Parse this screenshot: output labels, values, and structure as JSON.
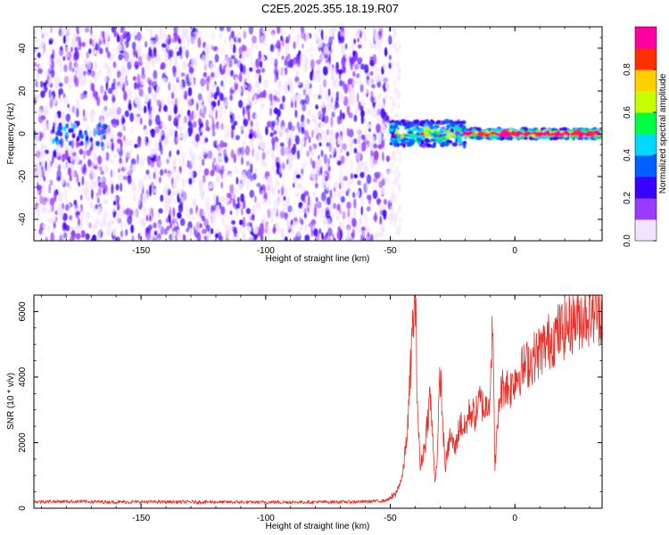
{
  "title": "C2E5.2025.355.18.19.R07",
  "chart_data": [
    {
      "type": "heatmap",
      "name": "spectrogram",
      "xlabel": "Height of straight line (km)",
      "ylabel": "Frequency (Hz)",
      "xlim": [
        -193,
        35
      ],
      "ylim": [
        -50,
        50
      ],
      "xticks": [
        -150,
        -100,
        -50,
        0
      ],
      "xtick_labels": [
        "-150",
        "-100",
        "-50",
        "0"
      ],
      "yticks": [
        -40,
        -20,
        0,
        20,
        40
      ],
      "ytick_labels": [
        "-40",
        "-20",
        "0",
        "20",
        "40"
      ],
      "noise_region_x": [
        -193,
        -50
      ],
      "signal_onset_km": -50,
      "carrier_frequency_hz": 0,
      "colorbar": {
        "label": "Normalized spectral amplitude",
        "range": [
          0,
          1
        ],
        "ticks": [
          0.0,
          0.2,
          0.4,
          0.6,
          0.8
        ],
        "tick_labels": [
          "0.0",
          "0.2",
          "0.4",
          "0.6",
          "0.8"
        ],
        "colors": [
          "#f2e4ff",
          "#9a3cff",
          "#3a00ff",
          "#0060ff",
          "#00d8ff",
          "#00ff40",
          "#c8ff00",
          "#ffd000",
          "#ff3000",
          "#ff00a0"
        ]
      }
    },
    {
      "type": "line",
      "name": "snr",
      "xlabel": "Height of straight line (km)",
      "ylabel": "SNR (10 * v/v)",
      "xlim": [
        -193,
        35
      ],
      "ylim": [
        0,
        6500
      ],
      "xticks": [
        -150,
        -100,
        -50,
        0
      ],
      "xtick_labels": [
        "-150",
        "-100",
        "-50",
        "0"
      ],
      "yticks": [
        0,
        2000,
        4000,
        6000
      ],
      "ytick_labels": [
        "0",
        "2000",
        "4000",
        "6000"
      ],
      "color": "#e8302a",
      "x": [
        -193,
        -180,
        -160,
        -140,
        -120,
        -100,
        -80,
        -60,
        -52,
        -48,
        -45,
        -43,
        -41,
        -40,
        -39,
        -38,
        -36,
        -34,
        -32,
        -31,
        -30,
        -28,
        -26,
        -24,
        -22,
        -20,
        -18,
        -16,
        -14,
        -12,
        -10,
        -9,
        -8,
        -6,
        -4,
        -2,
        0,
        5,
        10,
        15,
        20,
        25,
        30,
        35
      ],
      "y": [
        200,
        210,
        190,
        195,
        190,
        185,
        190,
        200,
        230,
        400,
        1000,
        2500,
        5500,
        6500,
        3000,
        1200,
        2000,
        3500,
        800,
        1800,
        4200,
        1200,
        2200,
        1800,
        2600,
        2400,
        3000,
        2800,
        3300,
        3000,
        3500,
        5700,
        1300,
        3500,
        3800,
        3600,
        4000,
        4400,
        4800,
        5200,
        5500,
        5800,
        6000,
        6000
      ]
    }
  ]
}
